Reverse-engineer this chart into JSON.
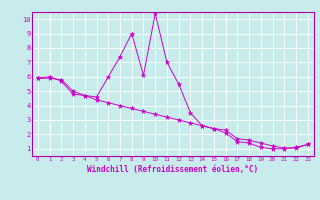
{
  "xlabel": "Windchill (Refroidissement éolien,°C)",
  "bg_color": "#c8ecec",
  "line_color": "#cc00cc",
  "grid_color": "#aad4d4",
  "spine_color": "#aa00aa",
  "xtick_labels": [
    "0",
    "1",
    "2",
    "3",
    "4",
    "5",
    "6",
    "7",
    "8",
    "9",
    "10",
    "11",
    "12",
    "13",
    "14",
    "15",
    "16",
    "17",
    "18",
    "19",
    "20",
    "21",
    "22",
    "23"
  ],
  "ytick_labels": [
    "1",
    "2",
    "3",
    "4",
    "5",
    "6",
    "7",
    "8",
    "9",
    "10"
  ],
  "line1_x": [
    0,
    1,
    2,
    3,
    4,
    5,
    6,
    7,
    8,
    9,
    10,
    11,
    12,
    13,
    14,
    15,
    16,
    17,
    18,
    19,
    20,
    21,
    22,
    23
  ],
  "line1_y": [
    5.9,
    6.0,
    5.7,
    4.8,
    4.7,
    4.6,
    6.0,
    7.4,
    9.0,
    6.1,
    10.4,
    7.0,
    5.5,
    3.5,
    2.6,
    2.4,
    2.1,
    1.5,
    1.4,
    1.1,
    1.0,
    1.0,
    1.1,
    1.3
  ],
  "line2_x": [
    0,
    1,
    2,
    3,
    4,
    5,
    6,
    7,
    8,
    9,
    10,
    11,
    12,
    13,
    14,
    15,
    16,
    17,
    18,
    19,
    20,
    21,
    22,
    23
  ],
  "line2_y": [
    5.9,
    5.9,
    5.8,
    5.0,
    4.7,
    4.4,
    4.2,
    4.0,
    3.8,
    3.6,
    3.4,
    3.2,
    3.0,
    2.8,
    2.6,
    2.4,
    2.3,
    1.7,
    1.6,
    1.4,
    1.2,
    1.05,
    1.05,
    1.3
  ],
  "figsize": [
    3.2,
    2.0
  ],
  "dpi": 100
}
